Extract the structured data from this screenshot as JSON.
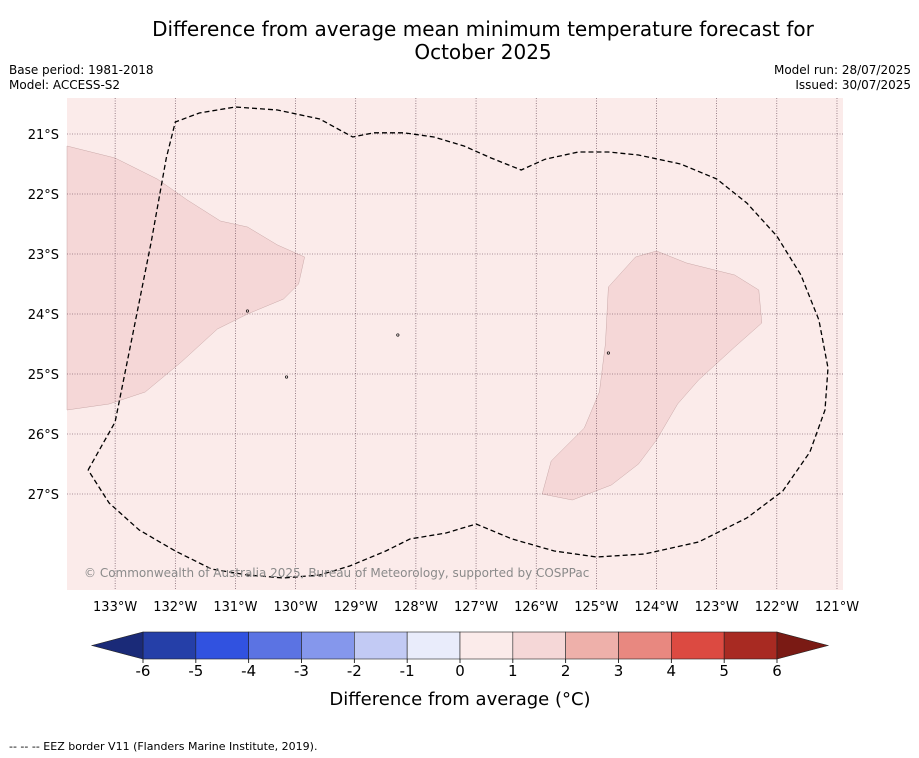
{
  "title_line1": "Difference from average mean minimum temperature forecast for",
  "title_line2": "October 2025",
  "info_left": {
    "base_period": "Base period: 1981-2018",
    "model": "Model: ACCESS-S2"
  },
  "info_right": {
    "model_run": "Model run: 28/07/2025",
    "issued": "Issued: 30/07/2025"
  },
  "map": {
    "lon_range": [
      -133.8,
      -120.9
    ],
    "lat_range": [
      -28.6,
      -20.4
    ],
    "lon_ticks": [
      -133,
      -132,
      -131,
      -130,
      -129,
      -128,
      -127,
      -126,
      -125,
      -124,
      -123,
      -122,
      -121
    ],
    "lon_tick_labels": [
      "133°W",
      "132°W",
      "131°W",
      "130°W",
      "129°W",
      "128°W",
      "127°W",
      "126°W",
      "125°W",
      "124°W",
      "123°W",
      "122°W",
      "121°W"
    ],
    "lat_ticks": [
      -21,
      -22,
      -23,
      -24,
      -25,
      -26,
      -27
    ],
    "lat_tick_labels": [
      "21°S",
      "22°S",
      "23°S",
      "24°S",
      "25°S",
      "26°S",
      "27°S"
    ],
    "background_color": "#fbebea",
    "anomaly_color": "#f5d7d7",
    "anomaly_category": "1 to 2",
    "watermark": "© Commonwealth of Australia 2025, Bureau of Meteorology, supported by COSPPac"
  },
  "colorbar": {
    "label": "Difference from average (°C)",
    "ticks": [
      "-6",
      "-5",
      "-4",
      "-3",
      "-2",
      "-1",
      "0",
      "1",
      "2",
      "3",
      "4",
      "5",
      "6"
    ],
    "colors": [
      "#253fa8",
      "#3152e0",
      "#5b73e3",
      "#8597ec",
      "#c2caf4",
      "#e9ecfb",
      "#fbebea",
      "#f5d7d7",
      "#eeb0aa",
      "#e88880",
      "#dc4a41",
      "#a82a22"
    ],
    "low_extend_color": "#1a2a78",
    "high_extend_color": "#7a1a14"
  },
  "footnote": "--  --  -- EEZ border V11 (Flanders Marine Institute, 2019)."
}
